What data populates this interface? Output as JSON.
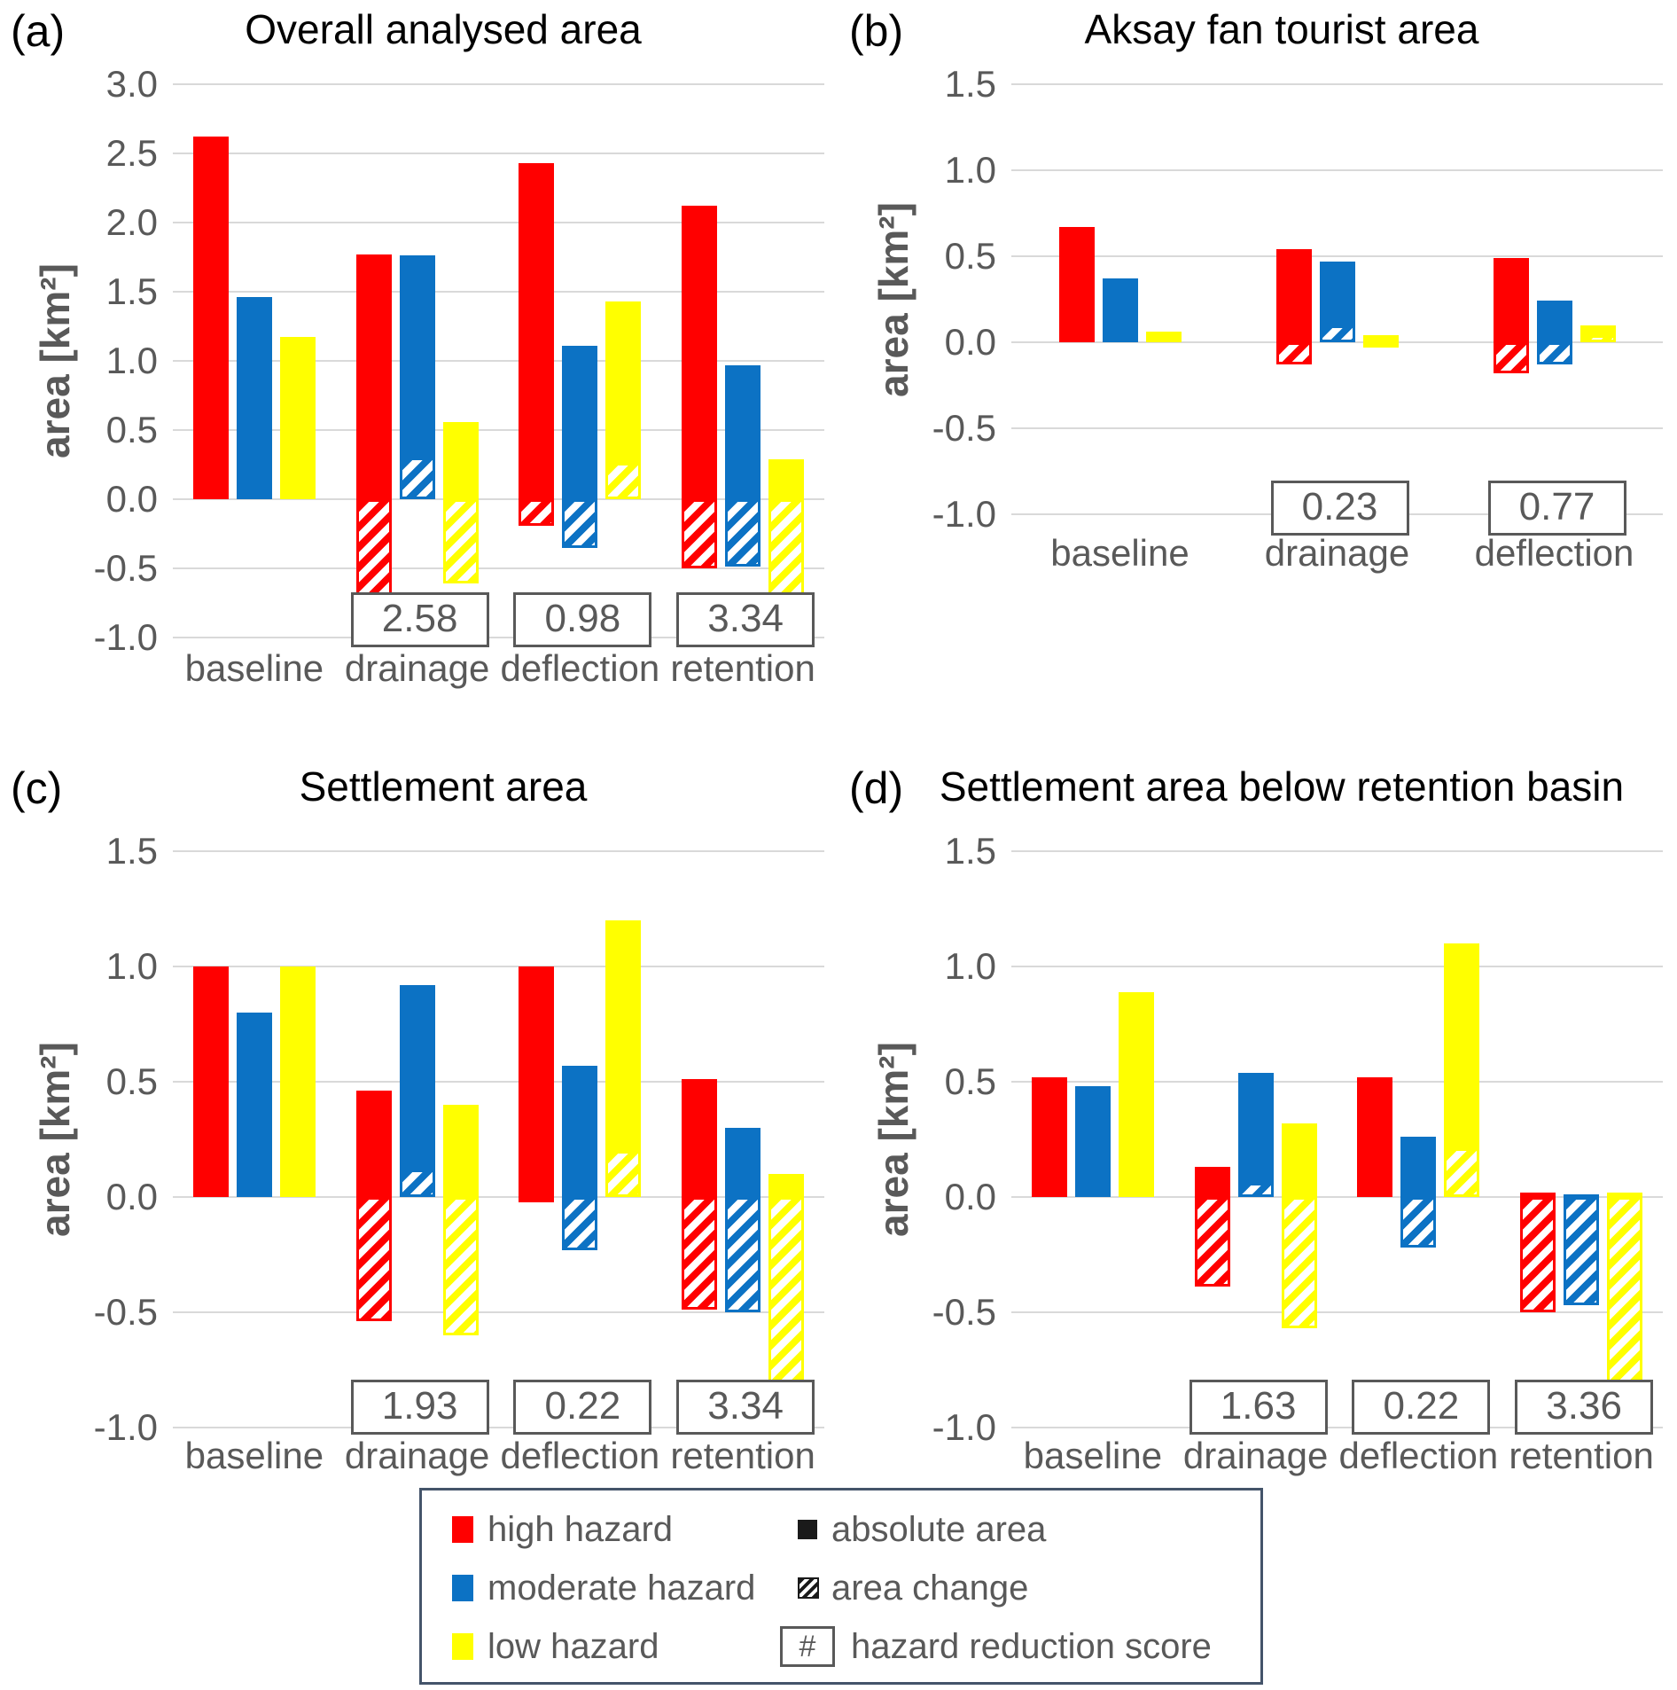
{
  "colors": {
    "high_hazard": "#FF0000",
    "moderate_hazard": "#0C72C4",
    "low_hazard": "#FFFF00",
    "gridline": "#D9D9D9",
    "axis_text": "#595959",
    "title_text": "#000000",
    "score_box_border": "#595959",
    "legend_border": "#44546A"
  },
  "chart_data": [
    {
      "panel_label": "(a)",
      "title": "Overall analysed area",
      "type": "bar",
      "ylabel": "area [km²]",
      "ylim": [
        -1.0,
        3.0
      ],
      "ytick_step": 0.5,
      "grid": true,
      "categories": [
        "baseline",
        "drainage",
        "deflection",
        "retention"
      ],
      "series": [
        {
          "name": "high hazard",
          "color": "#FF0000",
          "absolute_area": [
            2.62,
            1.77,
            2.43,
            2.12
          ],
          "area_change": [
            null,
            -0.85,
            -0.19,
            -0.5
          ]
        },
        {
          "name": "moderate hazard",
          "color": "#0C72C4",
          "absolute_area": [
            1.46,
            1.76,
            1.11,
            0.97
          ],
          "area_change": [
            null,
            0.3,
            -0.35,
            -0.49
          ]
        },
        {
          "name": "low hazard",
          "color": "#FFFF00",
          "absolute_area": [
            1.17,
            0.56,
            1.43,
            0.29
          ],
          "area_change": [
            null,
            -0.61,
            0.26,
            -0.88
          ]
        }
      ],
      "hazard_reduction_scores": [
        null,
        "2.58",
        "0.98",
        "3.34"
      ]
    },
    {
      "panel_label": "(b)",
      "title": "Aksay fan tourist area",
      "type": "bar",
      "ylabel": "area [km²]",
      "ylim": [
        -1.0,
        1.5
      ],
      "ytick_step": 0.5,
      "grid": true,
      "categories": [
        "baseline",
        "drainage",
        "deflection"
      ],
      "series": [
        {
          "name": "high hazard",
          "color": "#FF0000",
          "absolute_area": [
            0.67,
            0.54,
            0.49
          ],
          "area_change": [
            null,
            -0.13,
            -0.18
          ]
        },
        {
          "name": "moderate hazard",
          "color": "#0C72C4",
          "absolute_area": [
            0.37,
            0.47,
            0.24
          ],
          "area_change": [
            null,
            0.1,
            -0.13
          ]
        },
        {
          "name": "low hazard",
          "color": "#FFFF00",
          "absolute_area": [
            0.06,
            0.04,
            0.1
          ],
          "area_change": [
            null,
            -0.02,
            0.04
          ]
        }
      ],
      "hazard_reduction_scores": [
        null,
        "0.23",
        "0.77"
      ]
    },
    {
      "panel_label": "(c)",
      "title": "Settlement area",
      "type": "bar",
      "ylabel": "area [km²]",
      "ylim": [
        -1.0,
        1.5
      ],
      "ytick_step": 0.5,
      "grid": true,
      "categories": [
        "baseline",
        "drainage",
        "deflection",
        "retention"
      ],
      "series": [
        {
          "name": "high hazard",
          "color": "#FF0000",
          "absolute_area": [
            1.0,
            0.46,
            1.0,
            0.51
          ],
          "area_change": [
            null,
            -0.54,
            -0.02,
            -0.49
          ]
        },
        {
          "name": "moderate hazard",
          "color": "#0C72C4",
          "absolute_area": [
            0.8,
            0.92,
            0.57,
            0.3
          ],
          "area_change": [
            null,
            0.12,
            -0.23,
            -0.5
          ]
        },
        {
          "name": "low hazard",
          "color": "#FFFF00",
          "absolute_area": [
            1.0,
            0.4,
            1.2,
            0.1
          ],
          "area_change": [
            null,
            -0.6,
            0.2,
            -0.9
          ]
        }
      ],
      "hazard_reduction_scores": [
        null,
        "1.93",
        "0.22",
        "3.34"
      ]
    },
    {
      "panel_label": "(d)",
      "title": "Settlement area below retention basin",
      "type": "bar",
      "ylabel": "area [km²]",
      "ylim": [
        -1.0,
        1.5
      ],
      "ytick_step": 0.5,
      "grid": true,
      "categories": [
        "baseline",
        "drainage",
        "deflection",
        "retention"
      ],
      "series": [
        {
          "name": "high hazard",
          "color": "#FF0000",
          "absolute_area": [
            0.52,
            0.13,
            0.52,
            0.02
          ],
          "area_change": [
            null,
            -0.39,
            null,
            -0.5
          ]
        },
        {
          "name": "moderate hazard",
          "color": "#0C72C4",
          "absolute_area": [
            0.48,
            0.54,
            0.26,
            0.01
          ],
          "area_change": [
            null,
            0.06,
            -0.22,
            -0.47
          ]
        },
        {
          "name": "low hazard",
          "color": "#FFFF00",
          "absolute_area": [
            0.89,
            0.32,
            1.1,
            0.02
          ],
          "area_change": [
            null,
            -0.57,
            0.21,
            -0.87
          ]
        }
      ],
      "hazard_reduction_scores": [
        null,
        "1.63",
        "0.22",
        "3.36"
      ]
    }
  ],
  "legend": {
    "hazard_classes": [
      {
        "label": "high hazard",
        "color": "#FF0000"
      },
      {
        "label": "moderate hazard",
        "color": "#0C72C4"
      },
      {
        "label": "low hazard",
        "color": "#FFFF00"
      }
    ],
    "symbols": [
      {
        "label": "absolute area",
        "type": "solid"
      },
      {
        "label": "area change",
        "type": "hatched"
      },
      {
        "label": "hazard reduction score",
        "type": "score-box",
        "symbol": "#"
      }
    ]
  }
}
